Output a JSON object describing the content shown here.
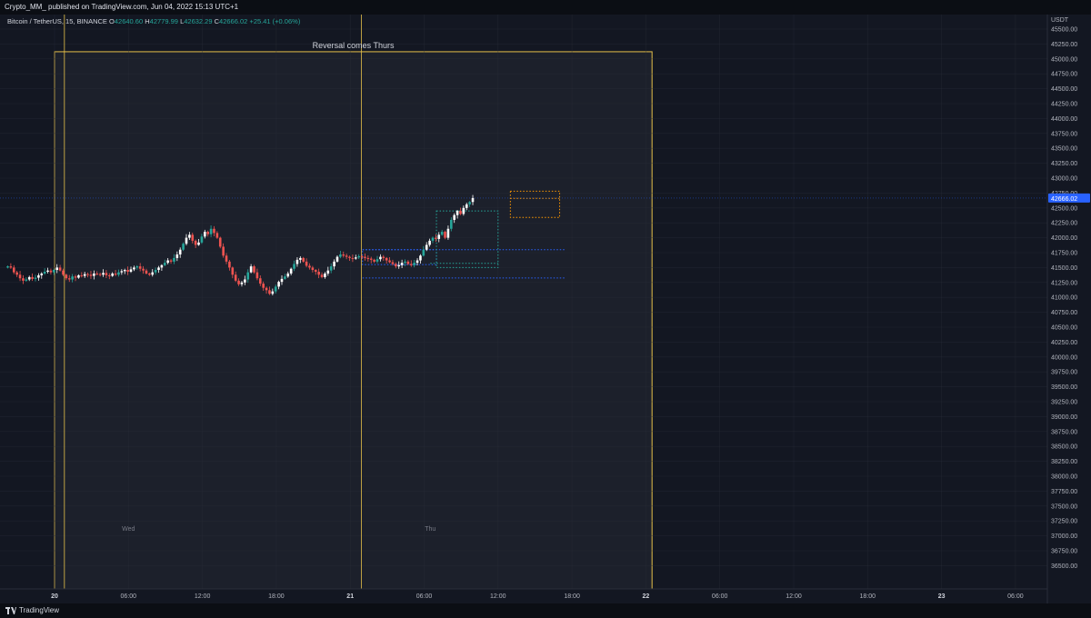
{
  "header": {
    "publish_line": "Crypto_MM_ published on TradingView.com, Jun 04, 2022 15:13 UTC+1"
  },
  "legend": {
    "symbol": "Bitcoin / TetherUS, 15, BINANCE",
    "open_label": "O",
    "open": "42640.60",
    "high_label": "H",
    "high": "42779.99",
    "low_label": "L",
    "low": "42632.29",
    "close_label": "C",
    "close": "42666.02",
    "change": "+25.41 (+0.06%)"
  },
  "footer": {
    "brand": "TradingView"
  },
  "colors": {
    "background": "#131722",
    "highlight_zone": "#1c202b",
    "up_candle": "#26a69a",
    "up_candle_alt": "#ffffff",
    "down_candle": "#ef5350",
    "vertical_line": "#e6c04a",
    "dotted_blue": "#2962ff",
    "dotted_teal": "#26a69a",
    "dotted_orange": "#ff9800",
    "last_price_bg": "#2962ff"
  },
  "chart_data": {
    "type": "candlestick",
    "title": "",
    "annotation": "Reversal comes Thurs",
    "currency_label": "USDT",
    "last_price": "42666.02",
    "y_range": [
      36250,
      45750
    ],
    "y_ticks": [
      "45500.00",
      "45250.00",
      "45000.00",
      "44750.00",
      "44500.00",
      "44250.00",
      "44000.00",
      "43750.00",
      "43500.00",
      "43250.00",
      "43000.00",
      "42750.00",
      "42500.00",
      "42250.00",
      "42000.00",
      "41750.00",
      "41500.00",
      "41250.00",
      "41000.00",
      "40750.00",
      "40500.00",
      "40250.00",
      "40000.00",
      "39750.00",
      "39500.00",
      "39250.00",
      "39000.00",
      "38750.00",
      "38500.00",
      "38250.00",
      "38000.00",
      "37750.00",
      "37500.00",
      "37250.00",
      "37000.00",
      "36750.00",
      "36500.00"
    ],
    "x_ticks": [
      {
        "label": "20",
        "hours": 0,
        "bold": true
      },
      {
        "label": "06:00",
        "hours": 6,
        "bold": false
      },
      {
        "label": "12:00",
        "hours": 12,
        "bold": false
      },
      {
        "label": "18:00",
        "hours": 18,
        "bold": false
      },
      {
        "label": "21",
        "hours": 24,
        "bold": true
      },
      {
        "label": "06:00",
        "hours": 30,
        "bold": false
      },
      {
        "label": "12:00",
        "hours": 36,
        "bold": false
      },
      {
        "label": "18:00",
        "hours": 42,
        "bold": false
      },
      {
        "label": "22",
        "hours": 48,
        "bold": true
      },
      {
        "label": "06:00",
        "hours": 54,
        "bold": false
      },
      {
        "label": "12:00",
        "hours": 60,
        "bold": false
      },
      {
        "label": "18:00",
        "hours": 66,
        "bold": false
      },
      {
        "label": "23",
        "hours": 72,
        "bold": true
      },
      {
        "label": "06:00",
        "hours": 78,
        "bold": false
      }
    ],
    "day_labels": [
      {
        "label": "Wed",
        "hours": 6
      },
      {
        "label": "Thu",
        "hours": 30.5
      }
    ],
    "vertical_lines_hours": [
      0.8,
      24.9
    ],
    "highlight_box": {
      "start_hours": 0,
      "end_hours": 48.5,
      "top_price": 45120,
      "bottom_price": 36250
    },
    "candle_interval_hours": 0.25,
    "candles_start_hours": -3.8,
    "closes": [
      41520,
      41500,
      41420,
      41380,
      41320,
      41280,
      41300,
      41340,
      41310,
      41330,
      41370,
      41400,
      41430,
      41450,
      41420,
      41460,
      41500,
      41450,
      41380,
      41320,
      41300,
      41350,
      41330,
      41370,
      41360,
      41390,
      41380,
      41360,
      41400,
      41390,
      41380,
      41410,
      41370,
      41360,
      41400,
      41380,
      41420,
      41440,
      41460,
      41430,
      41470,
      41500,
      41520,
      41480,
      41450,
      41400,
      41380,
      41420,
      41460,
      41500,
      41540,
      41580,
      41620,
      41600,
      41660,
      41720,
      41800,
      41900,
      42000,
      42050,
      41950,
      41880,
      41920,
      42020,
      42100,
      42060,
      42150,
      42080,
      42000,
      41850,
      41700,
      41600,
      41500,
      41380,
      41280,
      41220,
      41250,
      41300,
      41420,
      41520,
      41420,
      41320,
      41230,
      41160,
      41120,
      41060,
      41100,
      41180,
      41260,
      41310,
      41350,
      41400,
      41480,
      41560,
      41630,
      41660,
      41600,
      41530,
      41500,
      41460,
      41430,
      41380,
      41340,
      41400,
      41450,
      41520,
      41600,
      41680,
      41720,
      41700,
      41680,
      41660,
      41650,
      41670,
      41690,
      41680,
      41660,
      41650,
      41630,
      41600,
      41640,
      41680,
      41660,
      41620,
      41590,
      41560,
      41520,
      41540,
      41580,
      41600,
      41560,
      41540,
      41580,
      41620,
      41700,
      41800,
      41880,
      41950,
      42000,
      41980,
      42050,
      42100,
      42000,
      42150,
      42300,
      42380,
      42450,
      42400,
      42500,
      42560,
      42600,
      42666
    ]
  }
}
